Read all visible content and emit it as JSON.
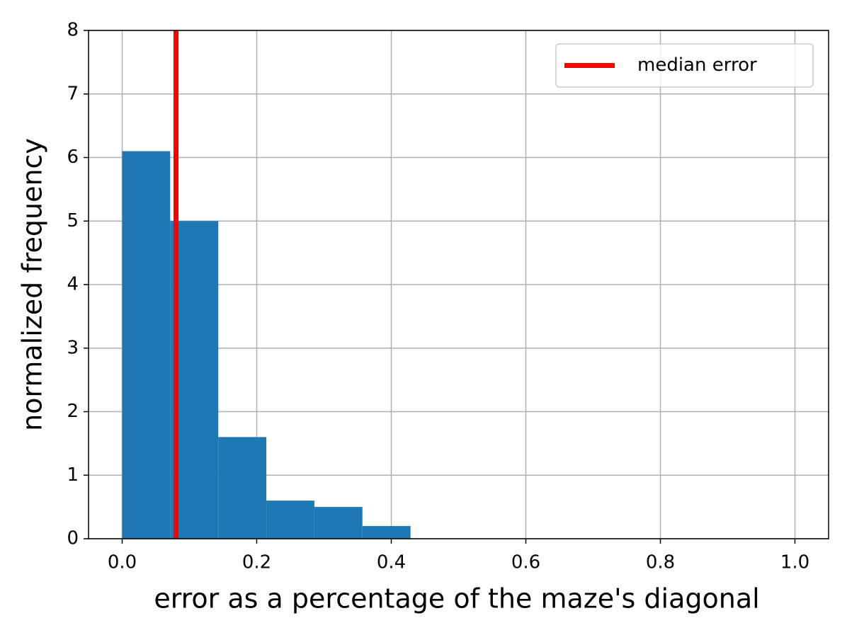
{
  "chart_data": {
    "type": "histogram",
    "xlabel": "error as a percentage of the maze's diagonal",
    "ylabel": "normalized frequency",
    "bins": [
      0,
      0.0714,
      0.1429,
      0.2143,
      0.2857,
      0.3571,
      0.4286
    ],
    "values": [
      6.1,
      5.0,
      1.6,
      0.6,
      0.5,
      0.2
    ],
    "color": "#1f77b4",
    "median": {
      "name": "median error",
      "value": 0.08,
      "color": "#ff0000"
    },
    "xlim": [
      -0.05,
      1.05
    ],
    "xticks": [
      {
        "value": 0,
        "label": "0.0"
      },
      {
        "value": 0.2,
        "label": "0.2"
      },
      {
        "value": 0.4,
        "label": "0.4"
      },
      {
        "value": 0.6,
        "label": "0.6"
      },
      {
        "value": 0.8,
        "label": "0.8"
      },
      {
        "value": 1,
        "label": "1.0"
      }
    ],
    "ylim": [
      0,
      8
    ],
    "yticks": [
      0,
      1,
      2,
      3,
      4,
      5,
      6,
      7,
      8
    ],
    "grid": true,
    "legend": "upper right"
  }
}
